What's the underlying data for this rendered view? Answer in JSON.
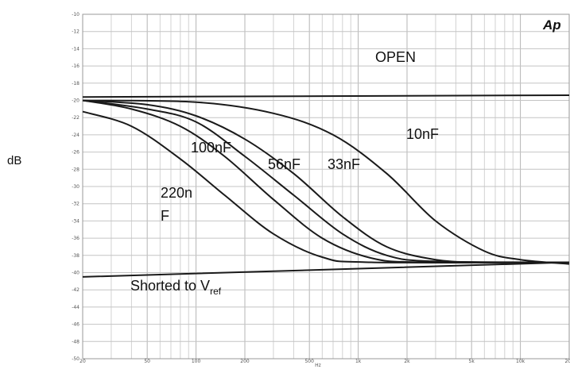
{
  "chart_data": {
    "type": "line",
    "logo": "Ap",
    "xlabel": "Hz",
    "ylabel": "dB",
    "xscale": "log",
    "xlim": [
      20,
      20000
    ],
    "ylim": [
      -50,
      -10
    ],
    "grid": true,
    "y_ticks": [
      "-10",
      "-12",
      "-14",
      "-16",
      "-18",
      "-20",
      "-22",
      "-24",
      "-26",
      "-28",
      "-30",
      "-32",
      "-34",
      "-36",
      "-38",
      "-40",
      "-42",
      "-44",
      "-46",
      "-48",
      "-50"
    ],
    "x_ticks": [
      {
        "value": 20,
        "label": "20"
      },
      {
        "value": 50,
        "label": "50"
      },
      {
        "value": 100,
        "label": "100"
      },
      {
        "value": 200,
        "label": "200"
      },
      {
        "value": 500,
        "label": "500"
      },
      {
        "value": 1000,
        "label": "1k"
      },
      {
        "value": 2000,
        "label": "2k"
      },
      {
        "value": 5000,
        "label": "5k"
      },
      {
        "value": 10000,
        "label": "10k"
      },
      {
        "value": 20000,
        "label": "20k"
      }
    ],
    "series": [
      {
        "name": "OPEN",
        "x": [
          20,
          20000
        ],
        "y": [
          -19.6,
          -19.4
        ]
      },
      {
        "name": "10nF",
        "x": [
          20,
          100,
          300,
          700,
          1500,
          3000,
          6000,
          10000,
          20000
        ],
        "y": [
          -20.0,
          -20.2,
          -21.5,
          -24.0,
          -28.5,
          -34.0,
          -37.5,
          -38.5,
          -39.0
        ]
      },
      {
        "name": "33nF",
        "x": [
          20,
          50,
          100,
          200,
          400,
          800,
          1500,
          3000,
          6000,
          20000
        ],
        "y": [
          -20.0,
          -20.5,
          -21.8,
          -24.5,
          -28.5,
          -33.5,
          -37.0,
          -38.5,
          -38.8,
          -38.8
        ]
      },
      {
        "name": "56nF",
        "x": [
          20,
          50,
          100,
          200,
          400,
          800,
          1500,
          3000,
          20000
        ],
        "y": [
          -20.0,
          -21.0,
          -22.5,
          -26.5,
          -31.0,
          -35.5,
          -38.0,
          -38.7,
          -38.8
        ]
      },
      {
        "name": "100nF",
        "x": [
          20,
          40,
          80,
          150,
          300,
          600,
          1200,
          2500,
          20000
        ],
        "y": [
          -20.0,
          -21.0,
          -23.0,
          -26.5,
          -31.5,
          -36.0,
          -38.3,
          -38.8,
          -38.8
        ]
      },
      {
        "name": "220nF",
        "x": [
          20,
          40,
          80,
          150,
          300,
          600,
          1200,
          20000
        ],
        "y": [
          -21.3,
          -23.0,
          -26.8,
          -31.0,
          -35.5,
          -38.2,
          -38.8,
          -38.8
        ]
      },
      {
        "name": "Shorted to Vref",
        "x": [
          20,
          20000
        ],
        "y": [
          -40.5,
          -38.8
        ]
      }
    ],
    "labels": {
      "open": "OPEN",
      "c10": "10nF",
      "c33": "33nF",
      "c56": "56nF",
      "c100": "100nF",
      "c220_a": "220n",
      "c220_b": "F",
      "shorted_main": "Shorted to V",
      "shorted_sub": "ref"
    }
  }
}
